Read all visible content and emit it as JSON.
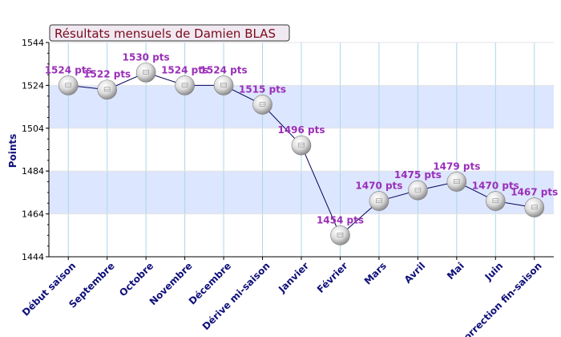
{
  "chart_data": {
    "type": "line",
    "title": "Résultats mensuels de Damien BLAS",
    "ylabel": "Points",
    "xlabel": "",
    "ylim": [
      1444,
      1544
    ],
    "yticks": [
      1444,
      1464,
      1484,
      1504,
      1524,
      1544
    ],
    "grid": true,
    "categories": [
      "Début saison",
      "Septembre",
      "Octobre",
      "Novembre",
      "Décembre",
      "Dérive mi-saison",
      "Janvier",
      "Février",
      "Mars",
      "Avril",
      "Mai",
      "Juin",
      "Correction fin-saison"
    ],
    "series": [
      {
        "values": [
          1524,
          1522,
          1530,
          1524,
          1524,
          1515,
          1496,
          1454,
          1470,
          1475,
          1479,
          1470,
          1467
        ],
        "labels": [
          "1524 pts",
          "1522 pts",
          "1530 pts",
          "1524 pts",
          "1524 pts",
          "1515 pts",
          "1496 pts",
          "1454 pts",
          "1470 pts",
          "1475 pts",
          "1479 pts",
          "1470 pts",
          "1467 pts"
        ]
      }
    ],
    "colors": {
      "band": "#dde6ff",
      "line": "#00005a",
      "data_label": "#9a2fb8",
      "category_label": "#10107a",
      "title_text": "#7a0a1a",
      "title_box": "#f1e9f2",
      "grid": "#a9d7e8"
    }
  }
}
